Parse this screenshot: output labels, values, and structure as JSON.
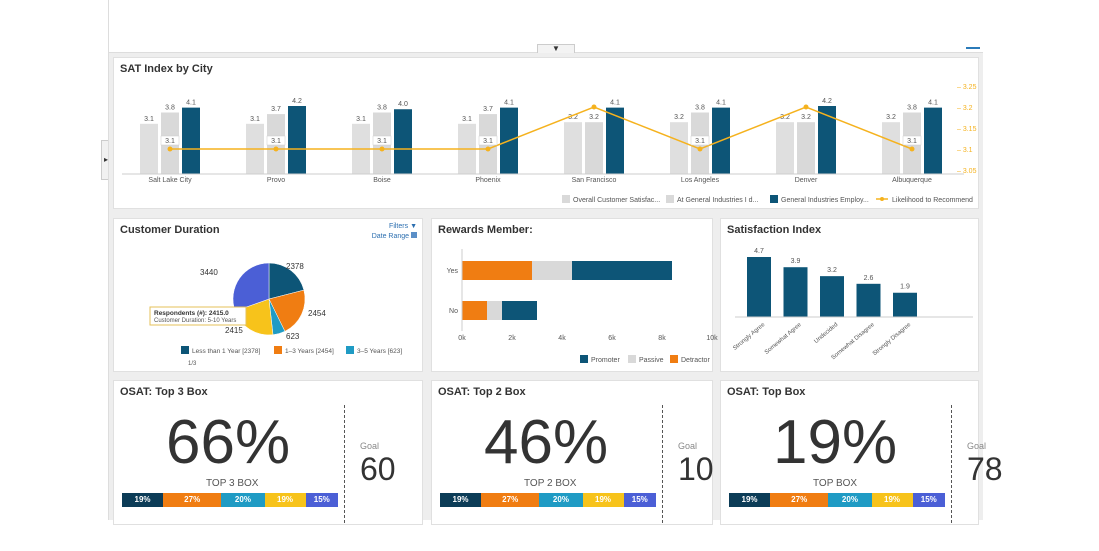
{
  "colors": {
    "navy": "#0d5577",
    "gray": "#d9d9d9",
    "orange": "#f07d12",
    "teal": "#1f9bc4",
    "yellow": "#f7c31b",
    "blue": "#4b5fd6",
    "line": "#f5b21e",
    "dark": "#0c3c57"
  },
  "sat_city": {
    "title": "SAT Index by City",
    "cities": [
      "Salt Lake City",
      "Provo",
      "Boise",
      "Phoenix",
      "San Francisco",
      "Los Angeles",
      "Denver",
      "Albuquerque"
    ],
    "overall": [
      3.1,
      3.1,
      3.1,
      3.1,
      3.2,
      3.2,
      3.2,
      3.2
    ],
    "at_general": [
      3.8,
      3.7,
      3.8,
      3.7,
      3.2,
      3.8,
      3.2,
      3.8
    ],
    "employee": [
      4.1,
      4.2,
      4.0,
      4.1,
      4.1,
      4.1,
      4.2,
      4.1
    ],
    "recommend": [
      3.1,
      3.1,
      3.1,
      3.1,
      3.2,
      3.1,
      3.2,
      3.1
    ],
    "overall_labels": [
      "3.1",
      "3.1",
      "3.1",
      "3.1",
      "3.2",
      "3.2",
      "3.2",
      "3.2"
    ],
    "at_general_labels": [
      "3.8",
      "3.7",
      "3.8",
      "3.7",
      "3.2",
      "3.8",
      "3.2",
      "3.8"
    ],
    "employee_labels": [
      "4.1",
      "4.2",
      "4.0",
      "4.1",
      "4.1",
      "4.1",
      "4.2",
      "4.1"
    ],
    "recommend_labels": [
      "3.1",
      "3.1",
      "3.1",
      "3.1",
      "",
      "3.1",
      "",
      "3.1"
    ],
    "right_ticks": [
      "3.25",
      "3.2",
      "3.15",
      "3.1",
      "3.05"
    ],
    "legend": [
      "Overall Customer Satisfac...",
      "At General Industries I d...",
      "General Industries Employ...",
      "Likelihood to Recommend"
    ]
  },
  "duration": {
    "title": "Customer Duration",
    "filters": "Filters",
    "date_range": "Date Range",
    "slices": [
      {
        "label": "Less than 1 Year",
        "value": 2378,
        "text": "2378"
      },
      {
        "label": "1–3 Years",
        "value": 2454,
        "text": "2454"
      },
      {
        "label": "3–5 Years",
        "value": 623,
        "text": "623"
      },
      {
        "label": "5–10 Years",
        "value": 2415,
        "text": "2415"
      },
      {
        "label": "",
        "value": 3440,
        "text": "3440"
      }
    ],
    "tooltip_line1": "Respondents (#): 2415.0",
    "tooltip_line2": "Customer Duration: 5-10 Years",
    "legend": [
      "Less than 1 Year [2378]",
      "1–3 Years [2454]",
      "3–5 Years [623]"
    ],
    "page": "1/3"
  },
  "rewards": {
    "title": "Rewards Member:",
    "rows": [
      {
        "label": "Yes",
        "detractor": 2800,
        "passive": 1600,
        "promoter": 4000
      },
      {
        "label": "No",
        "detractor": 1000,
        "passive": 600,
        "promoter": 1400
      }
    ],
    "ticks": [
      "0k",
      "2k",
      "4k",
      "6k",
      "8k",
      "10k"
    ],
    "legend": [
      "Promoter",
      "Passive",
      "Detractor"
    ]
  },
  "sat_index": {
    "title": "Satisfaction Index",
    "categories": [
      "Strongly Agree",
      "Somewhat Agree",
      "Undecided",
      "Somewhat Disagree",
      "Strongly Disagree"
    ],
    "values": [
      4.7,
      3.9,
      3.2,
      2.6,
      1.9
    ],
    "labels": [
      "4.7",
      "3.9",
      "3.2",
      "2.6",
      "1.9"
    ]
  },
  "kpis": [
    {
      "title": "OSAT: Top 3 Box",
      "value": "66%",
      "sublabel": "TOP 3 BOX",
      "goal_label": "Goal",
      "goal": "60",
      "segments": [
        {
          "t": "19%",
          "v": 19,
          "c": "dark"
        },
        {
          "t": "27%",
          "v": 27,
          "c": "orange"
        },
        {
          "t": "20%",
          "v": 20,
          "c": "teal"
        },
        {
          "t": "19%",
          "v": 19,
          "c": "yellow"
        },
        {
          "t": "15%",
          "v": 15,
          "c": "blue"
        }
      ]
    },
    {
      "title": "OSAT: Top 2 Box",
      "value": "46%",
      "sublabel": "TOP 2 BOX",
      "goal_label": "Goal",
      "goal": "10",
      "segments": [
        {
          "t": "19%",
          "v": 19,
          "c": "dark"
        },
        {
          "t": "27%",
          "v": 27,
          "c": "orange"
        },
        {
          "t": "20%",
          "v": 20,
          "c": "teal"
        },
        {
          "t": "19%",
          "v": 19,
          "c": "yellow"
        },
        {
          "t": "15%",
          "v": 15,
          "c": "blue"
        }
      ]
    },
    {
      "title": "OSAT: Top Box",
      "value": "19%",
      "sublabel": "TOP BOX",
      "goal_label": "Goal",
      "goal": "78",
      "segments": [
        {
          "t": "19%",
          "v": 19,
          "c": "dark"
        },
        {
          "t": "27%",
          "v": 27,
          "c": "orange"
        },
        {
          "t": "20%",
          "v": 20,
          "c": "teal"
        },
        {
          "t": "19%",
          "v": 19,
          "c": "yellow"
        },
        {
          "t": "15%",
          "v": 15,
          "c": "blue"
        }
      ]
    }
  ],
  "chart_data": [
    {
      "type": "bar",
      "title": "SAT Index by City",
      "categories": [
        "Salt Lake City",
        "Provo",
        "Boise",
        "Phoenix",
        "San Francisco",
        "Los Angeles",
        "Denver",
        "Albuquerque"
      ],
      "series": [
        {
          "name": "Overall Customer Satisfac...",
          "values": [
            3.1,
            3.1,
            3.1,
            3.1,
            3.2,
            3.2,
            3.2,
            3.2
          ]
        },
        {
          "name": "At General Industries I d...",
          "values": [
            3.8,
            3.7,
            3.8,
            3.7,
            3.2,
            3.8,
            3.2,
            3.8
          ]
        },
        {
          "name": "General Industries Employ...",
          "values": [
            4.1,
            4.2,
            4.0,
            4.1,
            4.1,
            4.1,
            4.2,
            4.1
          ]
        },
        {
          "name": "Likelihood to Recommend",
          "type": "line",
          "values": [
            3.1,
            3.1,
            3.1,
            3.1,
            3.2,
            3.1,
            3.2,
            3.1
          ]
        }
      ],
      "y2lim": [
        3.05,
        3.25
      ],
      "legend": "bottom-right"
    },
    {
      "type": "pie",
      "title": "Customer Duration",
      "labels": [
        "Less than 1 Year",
        "1–3 Years",
        "3–5 Years",
        "5–10 Years",
        ""
      ],
      "values": [
        2378,
        2454,
        623,
        2415,
        3440
      ]
    },
    {
      "type": "bar",
      "title": "Rewards Member:",
      "orientation": "horizontal",
      "stacked": true,
      "categories": [
        "Yes",
        "No"
      ],
      "series": [
        {
          "name": "Detractor",
          "values": [
            2800,
            1000
          ]
        },
        {
          "name": "Passive",
          "values": [
            1600,
            600
          ]
        },
        {
          "name": "Promoter",
          "values": [
            4000,
            1400
          ]
        }
      ],
      "xlim": [
        0,
        10000
      ]
    },
    {
      "type": "bar",
      "title": "Satisfaction Index",
      "categories": [
        "Strongly Agree",
        "Somewhat Agree",
        "Undecided",
        "Somewhat Disagree",
        "Strongly Disagree"
      ],
      "values": [
        4.7,
        3.9,
        3.2,
        2.6,
        1.9
      ]
    }
  ]
}
